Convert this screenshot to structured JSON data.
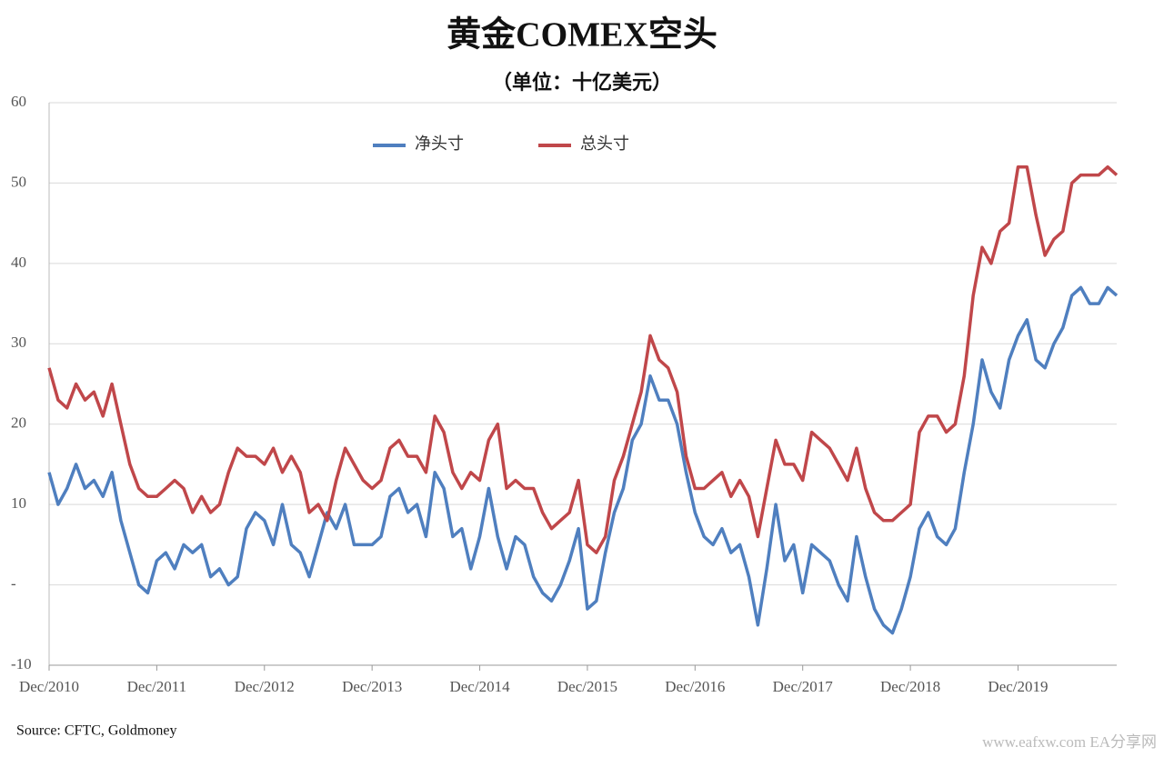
{
  "chart_data": {
    "type": "line",
    "title": "黄金COMEX空头",
    "subtitle": "（单位：十亿美元）",
    "source": "Source: CFTC, Goldmoney",
    "watermark": "www.eafxw.com  EA分享网",
    "x": [
      "2010-12",
      "2011-01",
      "2011-02",
      "2011-03",
      "2011-04",
      "2011-05",
      "2011-06",
      "2011-07",
      "2011-08",
      "2011-09",
      "2011-10",
      "2011-11",
      "2011-12",
      "2012-01",
      "2012-02",
      "2012-03",
      "2012-04",
      "2012-05",
      "2012-06",
      "2012-07",
      "2012-08",
      "2012-09",
      "2012-10",
      "2012-11",
      "2012-12",
      "2013-01",
      "2013-02",
      "2013-03",
      "2013-04",
      "2013-05",
      "2013-06",
      "2013-07",
      "2013-08",
      "2013-09",
      "2013-10",
      "2013-11",
      "2013-12",
      "2014-01",
      "2014-02",
      "2014-03",
      "2014-04",
      "2014-05",
      "2014-06",
      "2014-07",
      "2014-08",
      "2014-09",
      "2014-10",
      "2014-11",
      "2014-12",
      "2015-01",
      "2015-02",
      "2015-03",
      "2015-04",
      "2015-05",
      "2015-06",
      "2015-07",
      "2015-08",
      "2015-09",
      "2015-10",
      "2015-11",
      "2015-12",
      "2016-01",
      "2016-02",
      "2016-03",
      "2016-04",
      "2016-05",
      "2016-06",
      "2016-07",
      "2016-08",
      "2016-09",
      "2016-10",
      "2016-11",
      "2016-12",
      "2017-01",
      "2017-02",
      "2017-03",
      "2017-04",
      "2017-05",
      "2017-06",
      "2017-07",
      "2017-08",
      "2017-09",
      "2017-10",
      "2017-11",
      "2017-12",
      "2018-01",
      "2018-02",
      "2018-03",
      "2018-04",
      "2018-05",
      "2018-06",
      "2018-07",
      "2018-08",
      "2018-09",
      "2018-10",
      "2018-11",
      "2018-12",
      "2019-01",
      "2019-02",
      "2019-03",
      "2019-04",
      "2019-05",
      "2019-06",
      "2019-07",
      "2019-08",
      "2019-09",
      "2019-10",
      "2019-11",
      "2019-12",
      "2020-01",
      "2020-02",
      "2020-03",
      "2020-04",
      "2020-05",
      "2020-06",
      "2020-07",
      "2020-08",
      "2020-09",
      "2020-10",
      "2020-11"
    ],
    "series": [
      {
        "name": "净头寸",
        "color": "#4f7fbf",
        "values": [
          14,
          10,
          12,
          15,
          12,
          13,
          11,
          14,
          8,
          4,
          0,
          -1,
          3,
          4,
          2,
          5,
          4,
          5,
          1,
          2,
          0,
          1,
          7,
          9,
          8,
          5,
          10,
          5,
          4,
          1,
          5,
          9,
          7,
          10,
          5,
          5,
          5,
          6,
          11,
          12,
          9,
          10,
          6,
          14,
          12,
          6,
          7,
          2,
          6,
          12,
          6,
          2,
          6,
          5,
          1,
          -1,
          -2,
          0,
          3,
          7,
          -3,
          -2,
          4,
          9,
          12,
          18,
          20,
          26,
          23,
          23,
          20,
          14,
          9,
          6,
          5,
          7,
          4,
          5,
          1,
          -5,
          2,
          10,
          3,
          5,
          -1,
          5,
          4,
          3,
          0,
          -2,
          6,
          1,
          -3,
          -5,
          -6,
          -3,
          1,
          7,
          9,
          6,
          5,
          7,
          14,
          20,
          28,
          24,
          22,
          28,
          31,
          33,
          28,
          27,
          30,
          32,
          36,
          37,
          35,
          35,
          37,
          36
        ]
      },
      {
        "name": "总头寸",
        "color": "#c0474a",
        "values": [
          27,
          23,
          22,
          25,
          23,
          24,
          21,
          25,
          20,
          15,
          12,
          11,
          11,
          12,
          13,
          12,
          9,
          11,
          9,
          10,
          14,
          17,
          16,
          16,
          15,
          17,
          14,
          16,
          14,
          9,
          10,
          8,
          13,
          17,
          15,
          13,
          12,
          13,
          17,
          18,
          16,
          16,
          14,
          21,
          19,
          14,
          12,
          14,
          13,
          18,
          20,
          12,
          13,
          12,
          12,
          9,
          7,
          8,
          9,
          13,
          5,
          4,
          6,
          13,
          16,
          20,
          24,
          31,
          28,
          27,
          24,
          16,
          12,
          12,
          13,
          14,
          11,
          13,
          11,
          6,
          12,
          18,
          15,
          15,
          13,
          19,
          18,
          17,
          15,
          13,
          17,
          12,
          9,
          8,
          8,
          9,
          10,
          19,
          21,
          21,
          19,
          20,
          26,
          36,
          42,
          40,
          44,
          45,
          52,
          52,
          46,
          41,
          43,
          44,
          50,
          51,
          51,
          51,
          52,
          51
        ]
      }
    ],
    "ylim": [
      -10,
      60
    ],
    "yticks": [
      -10,
      {
        "value": 0,
        "label": "-"
      },
      10,
      20,
      30,
      40,
      50,
      60
    ],
    "xticks": [
      {
        "value": "2010-12",
        "label": "Dec/2010"
      },
      {
        "value": "2011-12",
        "label": "Dec/2011"
      },
      {
        "value": "2012-12",
        "label": "Dec/2012"
      },
      {
        "value": "2013-12",
        "label": "Dec/2013"
      },
      {
        "value": "2014-12",
        "label": "Dec/2014"
      },
      {
        "value": "2015-12",
        "label": "Dec/2015"
      },
      {
        "value": "2016-12",
        "label": "Dec/2016"
      },
      {
        "value": "2017-12",
        "label": "Dec/2017"
      },
      {
        "value": "2018-12",
        "label": "Dec/2018"
      },
      {
        "value": "2019-12",
        "label": "Dec/2019"
      }
    ],
    "grid": true,
    "legend": "top"
  }
}
